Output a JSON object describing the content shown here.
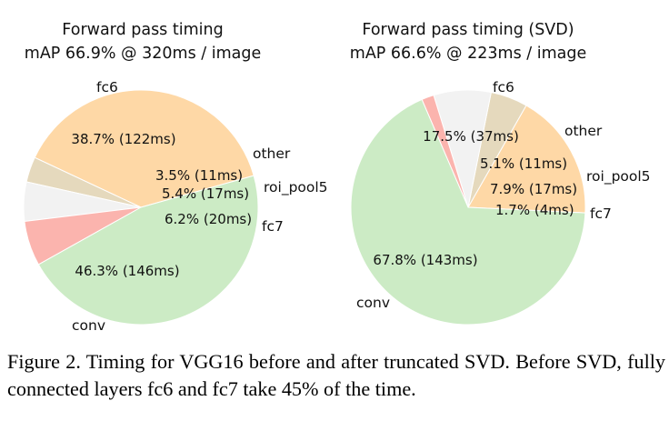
{
  "chart_data": [
    {
      "type": "pie",
      "title": "Forward pass timing",
      "subtitle": "mAP 66.9% @ 320ms / image",
      "slices": [
        {
          "name": "fc6",
          "pct_label": "38.7% (122ms)",
          "percent": 38.7,
          "color": "#fed8a6"
        },
        {
          "name": "other",
          "pct_label": "3.5% (11ms)",
          "percent": 3.5,
          "color": "#e5d9bd"
        },
        {
          "name": "roi_pool5",
          "pct_label": "5.4% (17ms)",
          "percent": 5.4,
          "color": "#f2f2f2"
        },
        {
          "name": "fc7",
          "pct_label": "6.2% (20ms)",
          "percent": 6.2,
          "color": "#fbb4ae"
        },
        {
          "name": "conv",
          "pct_label": "46.3% (146ms)",
          "percent": 46.3,
          "color": "#ccebc5"
        }
      ]
    },
    {
      "type": "pie",
      "title": "Forward pass timing (SVD)",
      "subtitle": "mAP 66.6% @ 223ms / image",
      "slices": [
        {
          "name": "fc6",
          "pct_label": "17.5% (37ms)",
          "percent": 17.5,
          "color": "#fed8a6"
        },
        {
          "name": "other",
          "pct_label": "5.1% (11ms)",
          "percent": 5.1,
          "color": "#e5d9bd"
        },
        {
          "name": "roi_pool5",
          "pct_label": "7.9% (17ms)",
          "percent": 7.9,
          "color": "#f2f2f2"
        },
        {
          "name": "fc7",
          "pct_label": "1.7% (4ms)",
          "percent": 1.7,
          "color": "#fbb4ae"
        },
        {
          "name": "conv",
          "pct_label": "67.8% (143ms)",
          "percent": 67.8,
          "color": "#ccebc5"
        }
      ]
    }
  ],
  "caption": "Figure 2. Timing for VGG16 before and after truncated SVD. Before SVD, fully connected layers fc6 and fc7 take 45% of the time."
}
